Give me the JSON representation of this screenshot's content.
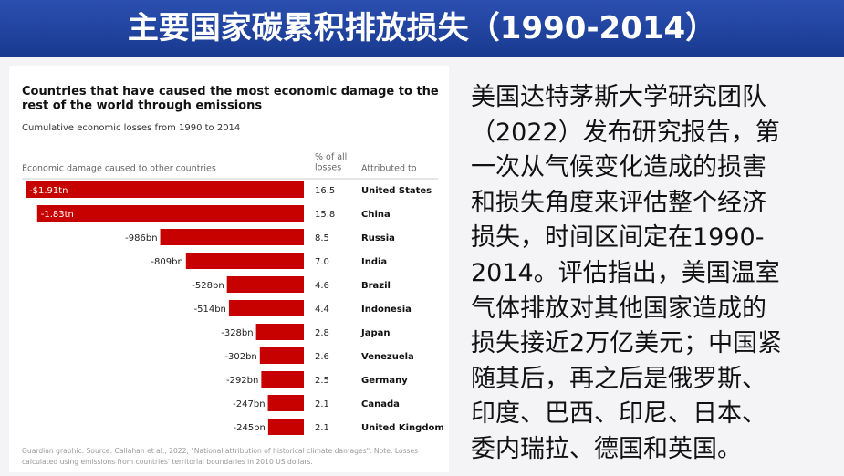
{
  "header": {
    "title": "主要国家碳累积排放损失（1990-2014）"
  },
  "chart_data": {
    "type": "bar",
    "orientation": "horizontal",
    "title": "Countries that have caused the most economic damage to the rest of the world through emissions",
    "subtitle": "Cumulative economic losses from 1990 to 2014",
    "value_header": "Economic damage caused to other countries",
    "share_header": "% of all losses",
    "category_header": "Attributed to",
    "categories": [
      "United States",
      "China",
      "Russia",
      "India",
      "Brazil",
      "Indonesia",
      "Japan",
      "Venezuela",
      "Germany",
      "Canada",
      "United Kingdom"
    ],
    "values": [
      -1910,
      -1830,
      -986,
      -809,
      -528,
      -514,
      -328,
      -302,
      -292,
      -247,
      -245
    ],
    "value_labels": [
      "-$1.91tn",
      "-1.83tn",
      "-986bn",
      "-809bn",
      "-528bn",
      "-514bn",
      "-328bn",
      "-302bn",
      "-292bn",
      "-247bn",
      "-245bn"
    ],
    "shares": [
      "16.5",
      "15.8",
      "8.5",
      "7.0",
      "4.6",
      "4.4",
      "2.8",
      "2.6",
      "2.5",
      "2.1",
      "2.1"
    ],
    "color": "#c70000",
    "note": [
      "Guardian graphic. Source: Callahan et al., 2022, \"National attribution of historical climate damages\". Note: Losses",
      "calculated using emissions from countries' territorial boundaries in 2010 US dollars."
    ]
  },
  "text": {
    "lines": [
      "美国达特茅斯大学研究团队",
      "（2022）发布研究报告，第",
      "一次从气候变化造成的损害",
      "和损失角度来评估整个经济",
      "损失，时间区间定在1990-",
      "2014。评估指出，美国温室",
      "气体排放对其他国家造成的",
      "损失接近2万亿美元；中国紧",
      "随其后，再之后是俄罗斯、",
      "印度、巴西、印尼、日本、",
      "委内瑞拉、德国和英国。"
    ]
  }
}
